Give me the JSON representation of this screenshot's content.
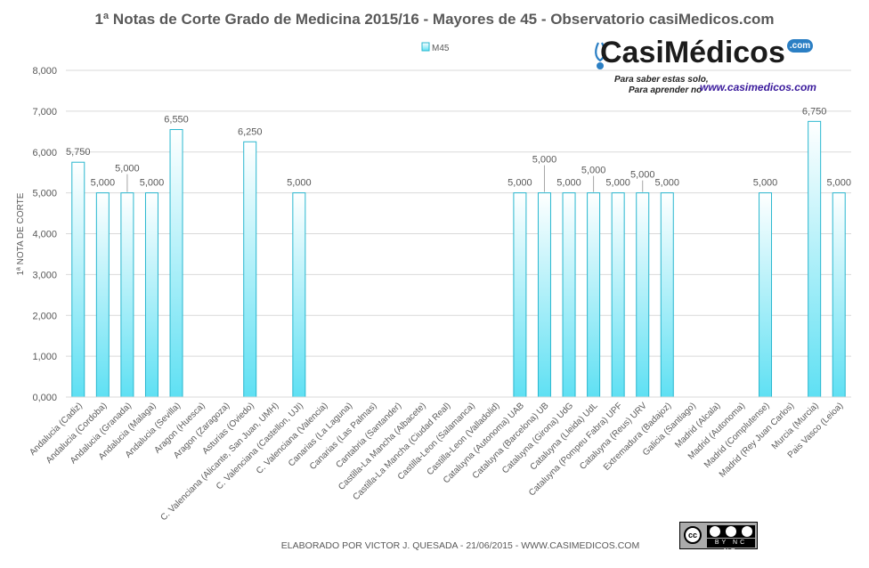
{
  "chart_data": {
    "type": "bar",
    "title": "1ª Notas de Corte Grado de Medicina 2015/16 - Mayores de 45 - Observatorio casiMedicos.com",
    "ylabel": "1ª NOTA DE CORTE",
    "xlabel": "",
    "ylim": [
      0,
      8000
    ],
    "yticks": [
      "0,000",
      "1,000",
      "2,000",
      "3,000",
      "4,000",
      "5,000",
      "6,000",
      "7,000",
      "8,000"
    ],
    "legend": "top-center",
    "grid": true,
    "colors": {
      "bar_fill_top": "#ffffff",
      "bar_fill_bottom": "#5fe0f3",
      "bar_stroke": "#29b7cf",
      "grid": "#d9d9d9",
      "text": "#595959"
    },
    "categories": [
      "Andalucia (Cadiz)",
      "Andalucia (Cordoba)",
      "Andalucia (Granada)",
      "Andalucia (Malaga)",
      "Andalucia (Sevilla)",
      "Aragon (Huesca)",
      "Aragon (Zaragoza)",
      "Asturias (Oviedo)",
      "C. Valenciana (Alicante, San Juan, UMH)",
      "C. Valenciana (Castellon, UJI)",
      "C. Valenciana (Valencia)",
      "Canarias (La Laguna)",
      "Canarias (Las Palmas)",
      "Cantabria (Santander)",
      "Castilla-La Mancha (Albacete)",
      "Castilla-La Mancha (Ciudad Real)",
      "Castilla-Leon (Salamanca)",
      "Castilla-Leon (Valladolid)",
      "Cataluyna (Autonoma) UAB",
      "Cataluyna (Barcelona) UB",
      "Cataluyna (Girona) UdG",
      "Cataluyna (Lleida) UdL",
      "Cataluyna (Pompeu Fabra) UPF",
      "Cataluyna (Reus) URV",
      "Extremadura (Badajoz)",
      "Galicia (Santiago)",
      "Madrid (Alcala)",
      "Madrid (Autonoma)",
      "Madrid (Complutense)",
      "Madrid (Rey Juan Carlos)",
      "Murcia (Murcia)",
      "Pais Vasco (Leioa)"
    ],
    "series": [
      {
        "name": "M45",
        "values": [
          5750,
          5000,
          5000,
          5000,
          6550,
          null,
          null,
          6250,
          null,
          5000,
          null,
          null,
          null,
          null,
          null,
          null,
          null,
          null,
          5000,
          5000,
          5000,
          5000,
          5000,
          5000,
          5000,
          null,
          null,
          null,
          5000,
          null,
          6750,
          5000
        ],
        "labels": [
          "5,750",
          "5,000",
          "5,000",
          "5,000",
          "6,550",
          "",
          "",
          "6,250",
          "",
          "5,000",
          "",
          "",
          "",
          "",
          "",
          "",
          "",
          "",
          "5,000",
          "5,000",
          "5,000",
          "5,000",
          "5,000",
          "5,000",
          "5,000",
          "",
          "",
          "",
          "5,000",
          "",
          "6,750",
          "5,000"
        ]
      }
    ]
  },
  "footer": {
    "credit": "ELABORADO POR VICTOR J. QUESADA - 21/06/2015 - WWW.CASIMEDICOS.COM"
  },
  "logo": {
    "brand": "CasiMédicos",
    "dot_com": ".com",
    "tagline_1": "Para saber estas solo,",
    "tagline_2": "Para aprender no",
    "url": "www.casimedicos.com",
    "icon": "stethoscope-icon",
    "color_brand": "#1b1b1b",
    "color_url": "#3a1a9c",
    "color_accent": "#2b7fc4"
  },
  "license": {
    "badge_text": "cc",
    "terms": "BY NC ND",
    "icon": "creative-commons-icon"
  }
}
